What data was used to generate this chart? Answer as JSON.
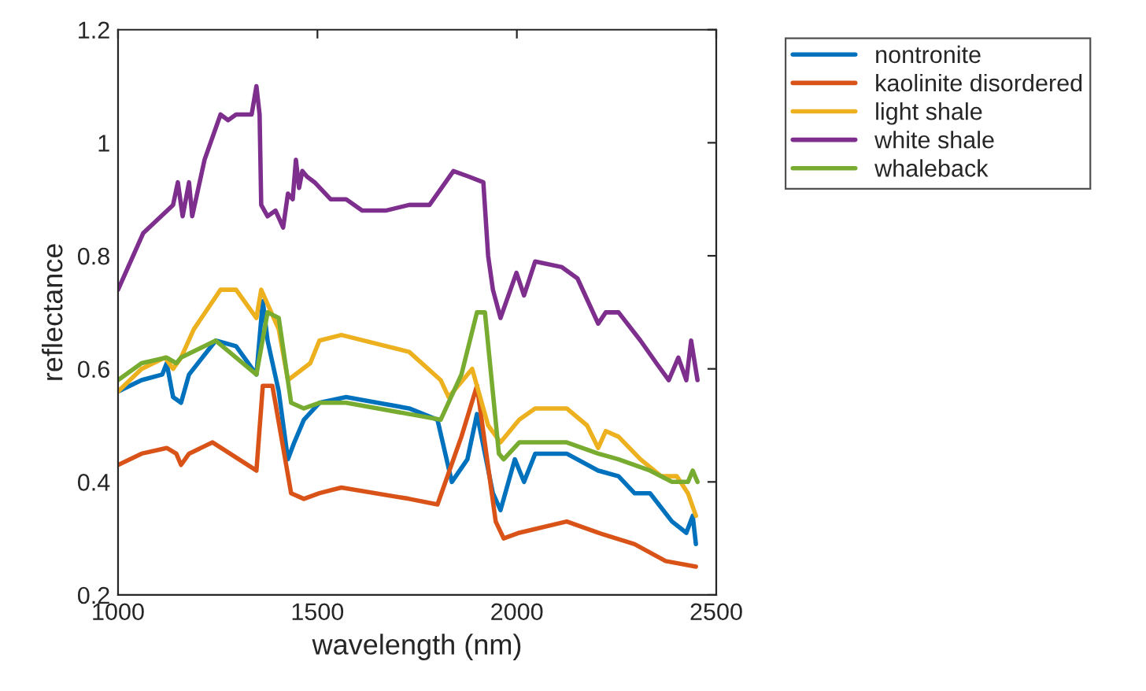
{
  "chart_data": {
    "type": "line",
    "xlabel": "wavelength (nm)",
    "ylabel": "reflectance",
    "xlim": [
      1000,
      2500
    ],
    "xticks": [
      1000,
      1500,
      2000,
      2500
    ],
    "ylim": [
      0.2,
      1.2
    ],
    "yticks": [
      0.2,
      0.4,
      0.6,
      0.8,
      1,
      1.2
    ],
    "grid": false,
    "legend": "right",
    "marker": "none",
    "line_style": "solid",
    "series": [
      {
        "name": "nontronite",
        "color": "#0072bd",
        "x": [
          1000,
          1059,
          1111,
          1122,
          1138,
          1158,
          1178,
          1245,
          1296,
          1347,
          1363,
          1375,
          1403,
          1426,
          1442,
          1466,
          1505,
          1572,
          1730,
          1801,
          1837,
          1876,
          1900,
          1940,
          1959,
          1995,
          2018,
          2046,
          2125,
          2204,
          2255,
          2295,
          2334,
          2389,
          2425,
          2441,
          2449
        ],
        "values": [
          0.56,
          0.58,
          0.59,
          0.61,
          0.55,
          0.54,
          0.59,
          0.65,
          0.64,
          0.59,
          0.72,
          0.65,
          0.56,
          0.44,
          0.47,
          0.51,
          0.54,
          0.55,
          0.53,
          0.51,
          0.4,
          0.44,
          0.52,
          0.38,
          0.35,
          0.44,
          0.4,
          0.45,
          0.45,
          0.42,
          0.41,
          0.38,
          0.38,
          0.33,
          0.31,
          0.34,
          0.29
        ]
      },
      {
        "name": "kaolinite disordered",
        "color": "#d95319",
        "x": [
          1000,
          1059,
          1122,
          1146,
          1158,
          1178,
          1237,
          1347,
          1363,
          1387,
          1434,
          1466,
          1505,
          1560,
          1730,
          1801,
          1861,
          1900,
          1947,
          1967,
          2006,
          2125,
          2204,
          2295,
          2373,
          2449
        ],
        "values": [
          0.43,
          0.45,
          0.46,
          0.45,
          0.43,
          0.45,
          0.47,
          0.42,
          0.57,
          0.57,
          0.38,
          0.37,
          0.38,
          0.39,
          0.37,
          0.36,
          0.48,
          0.57,
          0.33,
          0.3,
          0.31,
          0.33,
          0.31,
          0.29,
          0.26,
          0.25
        ]
      },
      {
        "name": "light shale",
        "color": "#edb120",
        "x": [
          1000,
          1059,
          1118,
          1138,
          1158,
          1190,
          1257,
          1296,
          1347,
          1359,
          1403,
          1426,
          1482,
          1505,
          1560,
          1730,
          1809,
          1829,
          1888,
          1928,
          1959,
          2006,
          2046,
          2125,
          2176,
          2204,
          2223,
          2255,
          2310,
          2362,
          2401,
          2429,
          2449
        ],
        "values": [
          0.56,
          0.6,
          0.62,
          0.6,
          0.62,
          0.67,
          0.74,
          0.74,
          0.69,
          0.74,
          0.67,
          0.58,
          0.61,
          0.65,
          0.66,
          0.63,
          0.58,
          0.55,
          0.6,
          0.5,
          0.47,
          0.51,
          0.53,
          0.53,
          0.5,
          0.46,
          0.49,
          0.48,
          0.44,
          0.41,
          0.41,
          0.38,
          0.34
        ]
      },
      {
        "name": "white shale",
        "color": "#7e2f8e",
        "x": [
          1000,
          1063,
          1138,
          1150,
          1162,
          1178,
          1186,
          1217,
          1257,
          1276,
          1296,
          1316,
          1335,
          1347,
          1355,
          1359,
          1375,
          1395,
          1414,
          1426,
          1438,
          1446,
          1454,
          1462,
          1474,
          1493,
          1533,
          1572,
          1612,
          1671,
          1730,
          1781,
          1841,
          1880,
          1916,
          1928,
          1940,
          1959,
          1999,
          2018,
          2046,
          2113,
          2152,
          2204,
          2223,
          2255,
          2310,
          2350,
          2381,
          2405,
          2425,
          2437,
          2453
        ],
        "values": [
          0.74,
          0.84,
          0.89,
          0.93,
          0.87,
          0.93,
          0.87,
          0.97,
          1.05,
          1.04,
          1.05,
          1.05,
          1.05,
          1.1,
          1.05,
          0.89,
          0.87,
          0.88,
          0.85,
          0.91,
          0.9,
          0.97,
          0.92,
          0.95,
          0.94,
          0.93,
          0.9,
          0.9,
          0.88,
          0.88,
          0.89,
          0.89,
          0.95,
          0.94,
          0.93,
          0.8,
          0.74,
          0.69,
          0.77,
          0.73,
          0.79,
          0.78,
          0.76,
          0.68,
          0.7,
          0.7,
          0.65,
          0.61,
          0.58,
          0.62,
          0.58,
          0.65,
          0.58
        ]
      },
      {
        "name": "whaleback",
        "color": "#77ac30",
        "x": [
          1000,
          1059,
          1122,
          1146,
          1158,
          1245,
          1347,
          1375,
          1403,
          1434,
          1466,
          1505,
          1572,
          1730,
          1809,
          1861,
          1900,
          1920,
          1955,
          1967,
          2006,
          2125,
          2204,
          2255,
          2334,
          2389,
          2429,
          2441,
          2453
        ],
        "values": [
          0.58,
          0.61,
          0.62,
          0.61,
          0.62,
          0.65,
          0.59,
          0.7,
          0.69,
          0.54,
          0.53,
          0.54,
          0.54,
          0.52,
          0.51,
          0.59,
          0.7,
          0.7,
          0.45,
          0.44,
          0.47,
          0.47,
          0.45,
          0.44,
          0.42,
          0.4,
          0.4,
          0.42,
          0.4
        ]
      }
    ]
  }
}
